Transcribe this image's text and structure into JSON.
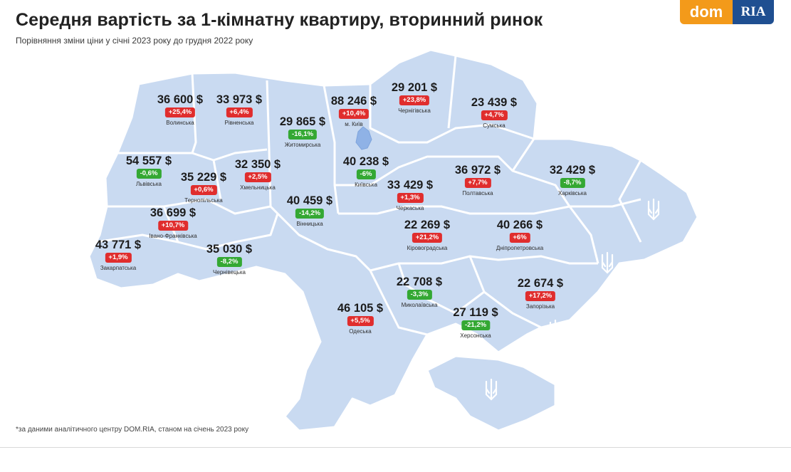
{
  "header": {
    "title": "Середня вартість за 1-кімнатну квартиру, вторинний ринок",
    "subtitle": "Порівняння зміни ціни у січні 2023 року до грудня 2022 року"
  },
  "logo": {
    "dom": "dom",
    "ria": "RIA"
  },
  "colors": {
    "map_fill": "#c9daf1",
    "map_border": "#ffffff",
    "increase": "#e02d2d",
    "decrease": "#34a833"
  },
  "regions": [
    {
      "id": "volynska",
      "price": "36 600 $",
      "change": "+25,4%",
      "direction": "up",
      "name": "Волинська"
    },
    {
      "id": "rivnenska",
      "price": "33 973 $",
      "change": "+6,4%",
      "direction": "up",
      "name": "Рівненська"
    },
    {
      "id": "zhytomyrska",
      "price": "29 865 $",
      "change": "-16,1%",
      "direction": "down",
      "name": "Житомирська"
    },
    {
      "id": "kyiv-city",
      "price": "88 246 $",
      "change": "+10,4%",
      "direction": "up",
      "name": "м. Київ"
    },
    {
      "id": "chernihivska",
      "price": "29 201 $",
      "change": "+23,8%",
      "direction": "up",
      "name": "Чернігівська"
    },
    {
      "id": "sumska",
      "price": "23 439 $",
      "change": "+4,7%",
      "direction": "up",
      "name": "Сумська"
    },
    {
      "id": "lvivska",
      "price": "54 557 $",
      "change": "-0,6%",
      "direction": "down",
      "name": "Львівська"
    },
    {
      "id": "ternopilska",
      "price": "35 229 $",
      "change": "+0,6%",
      "direction": "up",
      "name": "Тернопільська"
    },
    {
      "id": "khmelnytska",
      "price": "32 350 $",
      "change": "+2,5%",
      "direction": "up",
      "name": "Хмельницька"
    },
    {
      "id": "kyivska",
      "price": "40 238 $",
      "change": "-6%",
      "direction": "down",
      "name": "Київська"
    },
    {
      "id": "poltavska",
      "price": "36 972 $",
      "change": "+7,7%",
      "direction": "up",
      "name": "Полтавська"
    },
    {
      "id": "kharkivska",
      "price": "32 429 $",
      "change": "-8,7%",
      "direction": "down",
      "name": "Харківська"
    },
    {
      "id": "cherkaska",
      "price": "33 429 $",
      "change": "+1,3%",
      "direction": "up",
      "name": "Черкаська"
    },
    {
      "id": "ivano-frankivska",
      "price": "36 699 $",
      "change": "+10,7%",
      "direction": "up",
      "name": "Івано-Франківська"
    },
    {
      "id": "vinnytska",
      "price": "40 459 $",
      "change": "-14,2%",
      "direction": "down",
      "name": "Вінницька"
    },
    {
      "id": "kirovohradska",
      "price": "22 269 $",
      "change": "+21,2%",
      "direction": "up",
      "name": "Кіровоградська"
    },
    {
      "id": "dnipropetrovska",
      "price": "40 266 $",
      "change": "+6%",
      "direction": "up",
      "name": "Дніпропетровська"
    },
    {
      "id": "zakarpatska",
      "price": "43 771 $",
      "change": "+1,9%",
      "direction": "up",
      "name": "Закарпатська"
    },
    {
      "id": "chernivetska",
      "price": "35 030 $",
      "change": "-8,2%",
      "direction": "down",
      "name": "Чернівецька"
    },
    {
      "id": "mykolaivska",
      "price": "22 708 $",
      "change": "-3,3%",
      "direction": "down",
      "name": "Миколаївська"
    },
    {
      "id": "zaporizka",
      "price": "22 674 $",
      "change": "+17,2%",
      "direction": "up",
      "name": "Запорізька"
    },
    {
      "id": "odeska",
      "price": "46 105 $",
      "change": "+5,5%",
      "direction": "up",
      "name": "Одеська"
    },
    {
      "id": "khersonska",
      "price": "27 119 $",
      "change": "-21,2%",
      "direction": "down",
      "name": "Херсонська"
    }
  ],
  "trident_icons": [
    "trident-icon",
    "trident-icon",
    "trident-icon",
    "trident-icon"
  ],
  "footnote": "*за даними аналітичного центру DOM.RIA, станом на січень 2023 року"
}
